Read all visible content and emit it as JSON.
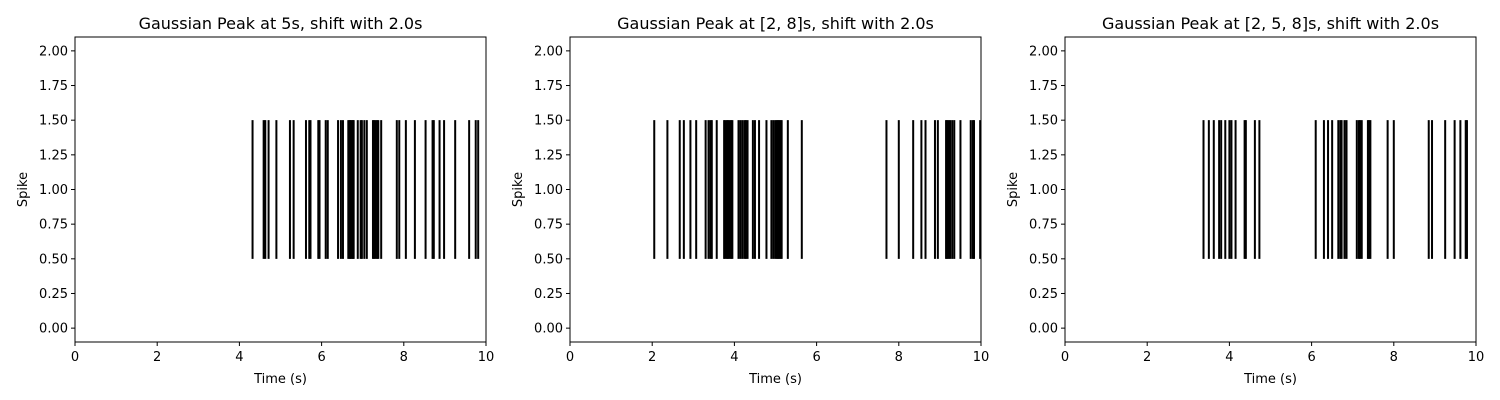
{
  "chart_data": [
    {
      "type": "eventplot",
      "title": "Gaussian Peak at 5s, shift with 2.0s",
      "xlabel": "Time (s)",
      "ylabel": "Spike",
      "xlim": [
        0,
        10
      ],
      "ylim": [
        -0.1,
        2.1
      ],
      "xticks": [
        "0",
        "2",
        "4",
        "6",
        "8",
        "10"
      ],
      "yticks": [
        "0.00",
        "0.25",
        "0.50",
        "0.75",
        "1.00",
        "1.25",
        "1.50",
        "1.75",
        "2.00"
      ],
      "event_range": [
        0.5,
        1.5
      ],
      "color": "#000000",
      "events": [
        4.32,
        4.59,
        4.63,
        4.71,
        4.9,
        5.23,
        5.32,
        5.62,
        5.7,
        5.73,
        5.92,
        5.95,
        6.1,
        6.15,
        6.4,
        6.47,
        6.52,
        6.65,
        6.68,
        6.7,
        6.73,
        6.76,
        6.78,
        6.88,
        6.95,
        6.98,
        7.04,
        7.1,
        7.25,
        7.28,
        7.31,
        7.35,
        7.38,
        7.45,
        7.83,
        7.89,
        8.05,
        8.27,
        8.53,
        8.7,
        8.73,
        8.87,
        8.98,
        9.25,
        9.59,
        9.75,
        9.81
      ]
    },
    {
      "type": "eventplot",
      "title": "Gaussian Peak at [2, 8]s, shift with 2.0s",
      "xlabel": "Time (s)",
      "ylabel": "Spike",
      "xlim": [
        0,
        10
      ],
      "ylim": [
        -0.1,
        2.1
      ],
      "xticks": [
        "0",
        "2",
        "4",
        "6",
        "8",
        "10"
      ],
      "yticks": [
        "0.00",
        "0.25",
        "0.50",
        "0.75",
        "1.00",
        "1.25",
        "1.50",
        "1.75",
        "2.00"
      ],
      "event_range": [
        0.5,
        1.5
      ],
      "color": "#000000",
      "events": [
        2.05,
        2.37,
        2.67,
        2.77,
        2.93,
        3.07,
        3.3,
        3.37,
        3.42,
        3.45,
        3.57,
        3.75,
        3.78,
        3.82,
        3.85,
        3.88,
        3.92,
        3.95,
        4.1,
        4.15,
        4.2,
        4.25,
        4.28,
        4.32,
        4.45,
        4.5,
        4.6,
        4.78,
        4.9,
        4.95,
        5.0,
        5.03,
        5.06,
        5.09,
        5.12,
        5.15,
        5.3,
        5.64,
        7.7,
        8.0,
        8.35,
        8.55,
        8.65,
        8.88,
        8.95,
        9.15,
        9.18,
        9.21,
        9.25,
        9.3,
        9.35,
        9.5,
        9.75,
        9.8,
        9.83,
        9.98
      ]
    },
    {
      "type": "eventplot",
      "title": "Gaussian Peak at [2, 5, 8]s, shift with 2.0s",
      "xlabel": "Time (s)",
      "ylabel": "Spike",
      "xlim": [
        0,
        10
      ],
      "ylim": [
        -0.1,
        2.1
      ],
      "xticks": [
        "0",
        "2",
        "4",
        "6",
        "8",
        "10"
      ],
      "yticks": [
        "0.00",
        "0.25",
        "0.50",
        "0.75",
        "1.00",
        "1.25",
        "1.50",
        "1.75",
        "2.00"
      ],
      "event_range": [
        0.5,
        1.5
      ],
      "color": "#000000",
      "events": [
        3.37,
        3.5,
        3.62,
        3.75,
        3.8,
        3.9,
        4.0,
        4.05,
        4.15,
        4.37,
        4.4,
        4.62,
        4.73,
        6.1,
        6.3,
        6.4,
        6.5,
        6.65,
        6.7,
        6.73,
        6.8,
        6.85,
        7.1,
        7.15,
        7.18,
        7.22,
        7.37,
        7.4,
        7.43,
        7.85,
        8.0,
        8.85,
        8.93,
        9.25,
        9.48,
        9.62,
        9.75,
        9.78
      ]
    }
  ]
}
